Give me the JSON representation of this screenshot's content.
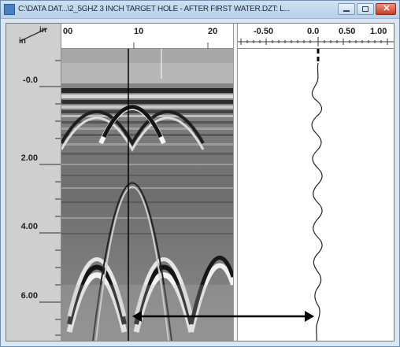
{
  "window": {
    "title": "C:\\DATA DAT...\\2_5GHZ 3 INCH TARGET HOLE - AFTER FIRST WATER.DZT: L...",
    "buttons": {
      "minimize": "minimize-icon",
      "maximize": "maximize-icon",
      "close": "close-icon"
    }
  },
  "depth_axis": {
    "unit_top": "in",
    "unit_left": "in",
    "labels": [
      "-0.0",
      "2.00",
      "4.00",
      "6.00"
    ]
  },
  "scan_axis": {
    "labels": [
      "00",
      "10",
      "20"
    ]
  },
  "trace_axis": {
    "labels": [
      "-0.50",
      "0.0",
      "0.50",
      "1.00"
    ]
  },
  "colors": {
    "window_frame": "#6f8fb3",
    "titlebar": "#b9d0ea",
    "depth_panel": "#cfcfcf",
    "close_button": "#c83d27"
  }
}
